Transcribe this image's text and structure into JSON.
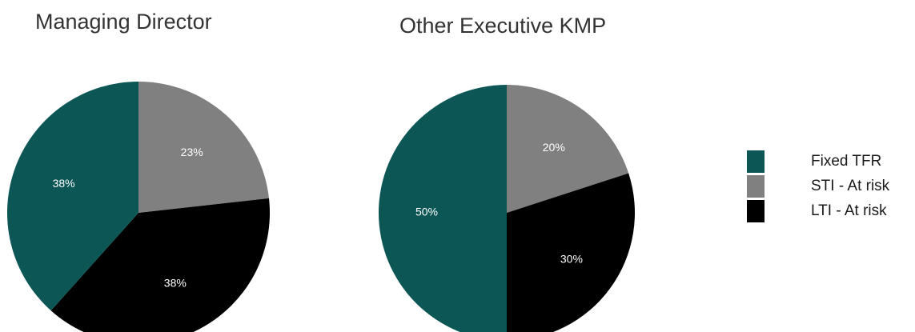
{
  "chart_data": [
    {
      "type": "pie",
      "title": "Managing Director",
      "categories": [
        "Fixed TFR",
        "STI - At risk",
        "LTI - At risk"
      ],
      "values": [
        38,
        23,
        38
      ],
      "labels": [
        "38%",
        "23%",
        "38%"
      ]
    },
    {
      "type": "pie",
      "title": "Other Executive KMP",
      "categories": [
        "Fixed TFR",
        "STI - At risk",
        "LTI - At risk"
      ],
      "values": [
        50,
        20,
        30
      ],
      "labels": [
        "50%",
        "20%",
        "30%"
      ]
    }
  ],
  "legend": [
    {
      "label": "Fixed TFR",
      "color": "#0c5656"
    },
    {
      "label": "STI - At risk",
      "color": "#808080"
    },
    {
      "label": "LTI - At risk",
      "color": "#000000"
    }
  ],
  "colors": {
    "Fixed TFR": "#0c5656",
    "STI - At risk": "#808080",
    "LTI - At risk": "#000000"
  }
}
